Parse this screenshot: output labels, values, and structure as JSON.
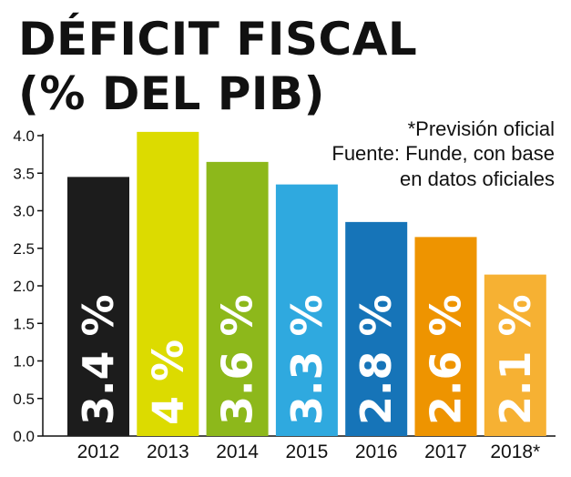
{
  "chart_data": {
    "type": "bar",
    "title": [
      "DÉFICIT FISCAL",
      "(% DEL PIB)"
    ],
    "notes": [
      "*Previsión oficial",
      "Fuente: Funde, con base",
      "en datos oficiales"
    ],
    "categories": [
      "2012",
      "2013",
      "2014",
      "2015",
      "2016",
      "2017",
      "2018*"
    ],
    "values": [
      3.45,
      4.05,
      3.65,
      3.35,
      2.85,
      2.65,
      2.15
    ],
    "data_labels": [
      "3.4 %",
      "4 %",
      "3.6 %",
      "3.3 %",
      "2.8 %",
      "2.6 %",
      "2.1 %"
    ],
    "colors": [
      "#1c1c1c",
      "#dcdb00",
      "#8db81b",
      "#2fa9df",
      "#1674b8",
      "#ee9400",
      "#f6b133"
    ],
    "y_ticks": [
      "0.0",
      "0.5",
      "1.0",
      "1.5",
      "2.0",
      "2.5",
      "3.0",
      "3.5",
      "4.0"
    ],
    "ylim": [
      0,
      4.0
    ],
    "xlabel": "",
    "ylabel": "",
    "grid": false,
    "legend": "none"
  }
}
